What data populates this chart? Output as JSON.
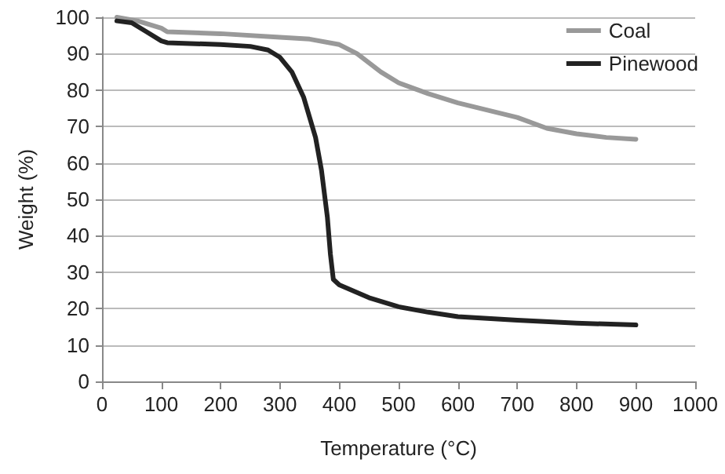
{
  "chart_data": {
    "type": "line",
    "xlabel": "Temperature (°C)",
    "ylabel": "Weight (%)",
    "xlim": [
      0,
      1000
    ],
    "xticks": [
      0,
      100,
      200,
      300,
      400,
      500,
      600,
      700,
      800,
      900,
      1000
    ],
    "ylim": [
      0,
      100
    ],
    "yticks": [
      0,
      10,
      20,
      30,
      40,
      50,
      60,
      70,
      80,
      90,
      100
    ],
    "grid": "y",
    "legend": "top right",
    "marker": "none",
    "line_style": "solid",
    "series": [
      {
        "name": "Coal",
        "color": "#999999",
        "x": [
          25,
          60,
          100,
          110,
          200,
          300,
          350,
          400,
          430,
          470,
          500,
          550,
          600,
          700,
          750,
          800,
          850,
          900
        ],
        "values": [
          100,
          99,
          97,
          96,
          95.5,
          94.5,
          94,
          92.5,
          90,
          85,
          82,
          79,
          76.5,
          72.5,
          69.5,
          68,
          67,
          66.5
        ]
      },
      {
        "name": "Pinewood",
        "color": "#222222",
        "x": [
          25,
          50,
          75,
          100,
          110,
          200,
          250,
          280,
          300,
          320,
          340,
          360,
          370,
          380,
          385,
          390,
          400,
          450,
          500,
          550,
          600,
          700,
          800,
          900
        ],
        "values": [
          99,
          98.5,
          96,
          93.5,
          93,
          92.5,
          92,
          91,
          89,
          85,
          78,
          67,
          58,
          45,
          35,
          28,
          26.5,
          23,
          20.5,
          19,
          17.8,
          16.8,
          16,
          15.5
        ]
      }
    ]
  }
}
